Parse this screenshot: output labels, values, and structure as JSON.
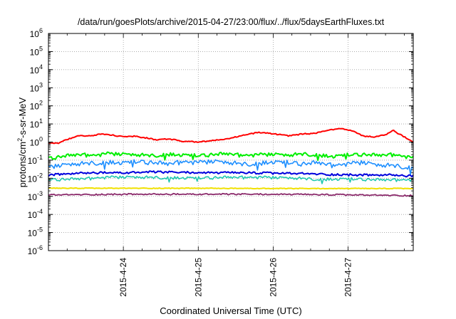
{
  "chart_data": {
    "type": "line",
    "title": "/data/run/goesPlots/archive/2015-04-27/23:00/flux/../flux/5daysEarthFluxes.txt",
    "xlabel": "Coordinated Universal Time (UTC)",
    "ylabel": {
      "prefix": "protons/cm",
      "sup": "2",
      "suffix": "-s-sr-MeV"
    },
    "yscale": "log",
    "ylim_exponents": [
      -6,
      6
    ],
    "y_tick_exponents": [
      6,
      5,
      4,
      3,
      2,
      1,
      0,
      -1,
      -2,
      -3,
      -4,
      -5,
      -6
    ],
    "y_tick_base": "10",
    "xlim_days": [
      0,
      4.87
    ],
    "x_ticks": [
      {
        "label": "2015-4-24",
        "day": 1.0
      },
      {
        "label": "2015-4-25",
        "day": 2.0
      },
      {
        "label": "2015-4-26",
        "day": 3.0
      },
      {
        "label": "2015-4-27",
        "day": 4.0
      }
    ],
    "grid": true,
    "legend": "none",
    "series": [
      {
        "color": "#ff0000",
        "width": 2.0,
        "noise": 0.06,
        "points": [
          [
            0,
            0.9
          ],
          [
            0.12,
            0.85
          ],
          [
            0.25,
            1.4
          ],
          [
            0.4,
            2.3
          ],
          [
            0.55,
            2.2
          ],
          [
            0.7,
            2.8
          ],
          [
            0.85,
            2.5
          ],
          [
            1.0,
            1.9
          ],
          [
            1.15,
            2.1
          ],
          [
            1.3,
            1.7
          ],
          [
            1.45,
            1.3
          ],
          [
            1.6,
            1.5
          ],
          [
            1.8,
            1.1
          ],
          [
            2.0,
            1.0
          ],
          [
            2.2,
            1.2
          ],
          [
            2.4,
            1.5
          ],
          [
            2.6,
            2.4
          ],
          [
            2.8,
            3.4
          ],
          [
            3.0,
            2.9
          ],
          [
            3.2,
            2.2
          ],
          [
            3.4,
            2.8
          ],
          [
            3.55,
            3.0
          ],
          [
            3.75,
            4.5
          ],
          [
            3.9,
            5.5
          ],
          [
            4.05,
            4.2
          ],
          [
            4.2,
            2.2
          ],
          [
            4.35,
            1.9
          ],
          [
            4.5,
            2.5
          ],
          [
            4.6,
            4.5
          ],
          [
            4.7,
            2.5
          ],
          [
            4.87,
            1.0
          ]
        ]
      },
      {
        "color": "#00ee00",
        "width": 2.0,
        "noise": 0.22,
        "points": [
          [
            0,
            0.12
          ],
          [
            0.2,
            0.16
          ],
          [
            0.4,
            0.2
          ],
          [
            0.6,
            0.18
          ],
          [
            0.8,
            0.22
          ],
          [
            1.0,
            0.2
          ],
          [
            1.2,
            0.19
          ],
          [
            1.4,
            0.18
          ],
          [
            1.6,
            0.22
          ],
          [
            1.8,
            0.19
          ],
          [
            2.0,
            0.17
          ],
          [
            2.2,
            0.2
          ],
          [
            2.4,
            0.22
          ],
          [
            2.6,
            0.18
          ],
          [
            2.8,
            0.19
          ],
          [
            3.0,
            0.2
          ],
          [
            3.2,
            0.18
          ],
          [
            3.4,
            0.22
          ],
          [
            3.6,
            0.2
          ],
          [
            3.8,
            0.16
          ],
          [
            4.0,
            0.19
          ],
          [
            4.2,
            0.2
          ],
          [
            4.4,
            0.18
          ],
          [
            4.6,
            0.2
          ],
          [
            4.87,
            0.13
          ]
        ]
      },
      {
        "color": "#1e8fff",
        "width": 1.6,
        "noise": 0.28,
        "points": [
          [
            0,
            0.04
          ],
          [
            0.2,
            0.05
          ],
          [
            0.4,
            0.06
          ],
          [
            0.6,
            0.07
          ],
          [
            0.8,
            0.08
          ],
          [
            1.0,
            0.07
          ],
          [
            1.2,
            0.08
          ],
          [
            1.4,
            0.07
          ],
          [
            1.6,
            0.06
          ],
          [
            1.8,
            0.08
          ],
          [
            2.0,
            0.07
          ],
          [
            2.2,
            0.08
          ],
          [
            2.4,
            0.07
          ],
          [
            2.6,
            0.06
          ],
          [
            2.8,
            0.07
          ],
          [
            3.0,
            0.08
          ],
          [
            3.2,
            0.07
          ],
          [
            3.4,
            0.06
          ],
          [
            3.6,
            0.07
          ],
          [
            3.8,
            0.05
          ],
          [
            4.0,
            0.06
          ],
          [
            4.2,
            0.07
          ],
          [
            4.4,
            0.05
          ],
          [
            4.6,
            0.05
          ],
          [
            4.87,
            0.04
          ]
        ]
      },
      {
        "color": "#0000dd",
        "width": 2.0,
        "noise": 0.12,
        "points": [
          [
            0,
            0.015
          ],
          [
            0.3,
            0.018
          ],
          [
            0.6,
            0.02
          ],
          [
            1.0,
            0.02
          ],
          [
            1.4,
            0.022
          ],
          [
            1.8,
            0.021
          ],
          [
            2.2,
            0.02
          ],
          [
            2.6,
            0.02
          ],
          [
            3.0,
            0.019
          ],
          [
            3.4,
            0.018
          ],
          [
            3.8,
            0.016
          ],
          [
            4.2,
            0.015
          ],
          [
            4.6,
            0.015
          ],
          [
            4.87,
            0.013
          ]
        ]
      },
      {
        "color": "#20c8b0",
        "width": 1.6,
        "noise": 0.18,
        "points": [
          [
            0,
            0.008
          ],
          [
            0.4,
            0.009
          ],
          [
            0.8,
            0.011
          ],
          [
            1.2,
            0.011
          ],
          [
            1.6,
            0.011
          ],
          [
            2.0,
            0.01
          ],
          [
            2.4,
            0.011
          ],
          [
            2.8,
            0.011
          ],
          [
            3.2,
            0.01
          ],
          [
            3.6,
            0.009
          ],
          [
            4.0,
            0.009
          ],
          [
            4.4,
            0.008
          ],
          [
            4.87,
            0.008
          ]
        ]
      },
      {
        "color": "#f0e000",
        "width": 2.0,
        "noise": 0.04,
        "points": [
          [
            0,
            0.0028
          ],
          [
            1.0,
            0.0028
          ],
          [
            2.0,
            0.0028
          ],
          [
            3.0,
            0.0027
          ],
          [
            4.0,
            0.0027
          ],
          [
            4.87,
            0.0027
          ]
        ]
      },
      {
        "color": "#8b2a6b",
        "width": 1.8,
        "noise": 0.08,
        "points": [
          [
            0,
            0.0012
          ],
          [
            1.0,
            0.0013
          ],
          [
            2.0,
            0.0013
          ],
          [
            3.0,
            0.0013
          ],
          [
            4.0,
            0.0012
          ],
          [
            4.87,
            0.0011
          ]
        ]
      }
    ]
  }
}
